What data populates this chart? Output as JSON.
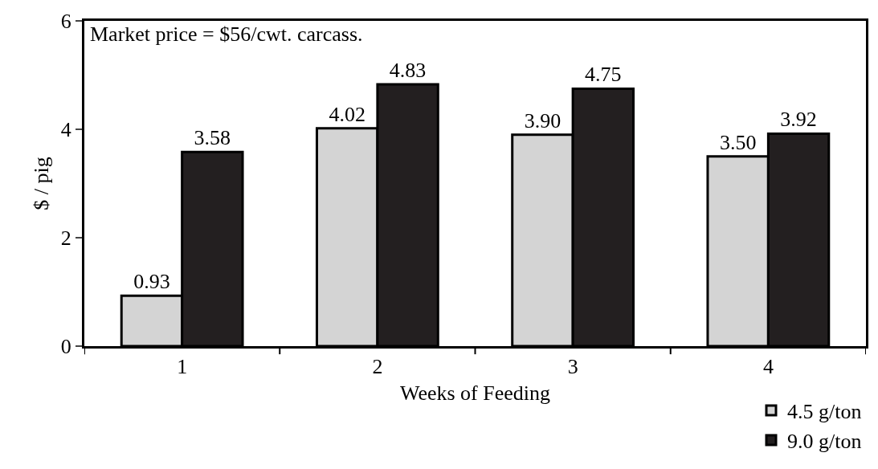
{
  "chart_data": {
    "type": "bar",
    "xlabel": "Weeks of Feeding",
    "ylabel": "$ / pig",
    "categories": [
      "1",
      "2",
      "3",
      "4"
    ],
    "series": [
      {
        "name": "4.5 g/ton",
        "color": "#d4d4d4",
        "values": [
          0.93,
          4.02,
          3.9,
          3.5
        ],
        "value_labels": [
          "0.93",
          "4.02",
          "3.90",
          "3.50"
        ]
      },
      {
        "name": "9.0 g/ton",
        "color": "#231f20",
        "values": [
          3.58,
          4.83,
          4.75,
          3.92
        ],
        "value_labels": [
          "3.58",
          "4.83",
          "4.75",
          "3.92"
        ]
      }
    ],
    "ylim": [
      0,
      6
    ],
    "yticks": [
      0,
      2,
      4,
      6
    ],
    "legend": "bottom right",
    "annotations": [
      "Market price = $56/cwt. carcass."
    ]
  }
}
